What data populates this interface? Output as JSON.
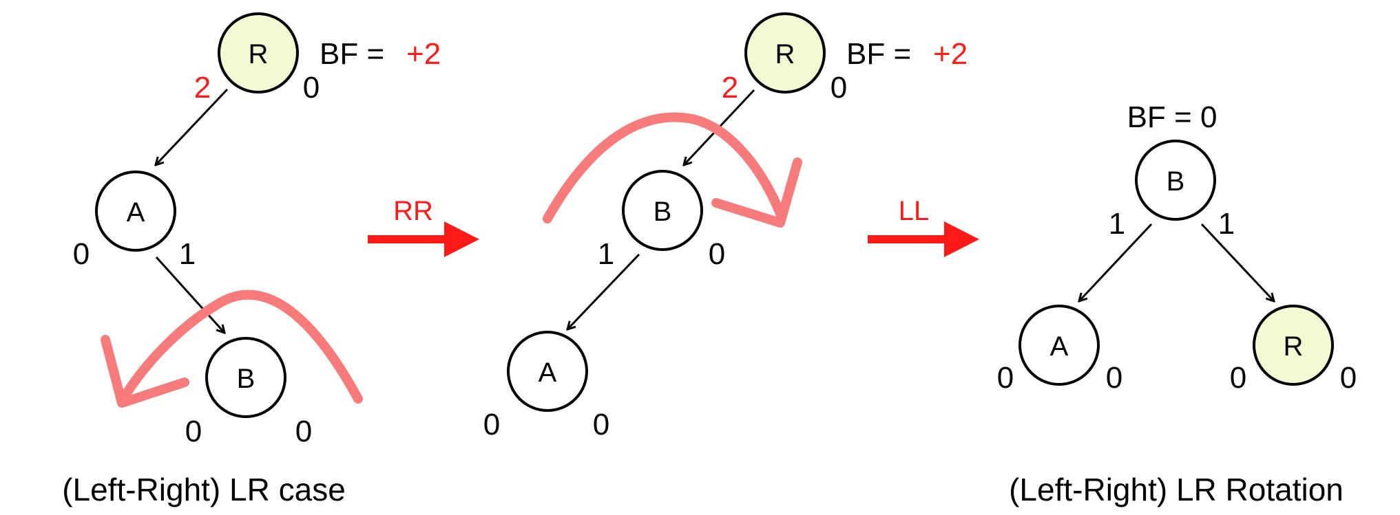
{
  "colors": {
    "highlight_fill": "#f5f9d3",
    "node_fill": "#ffffff",
    "accent_red": "#ff1a1a",
    "rotation_curve": "#f77b7b"
  },
  "panel1": {
    "nodes": {
      "r": "R",
      "a": "A",
      "b": "B"
    },
    "bf_label": "BF =",
    "bf_value": "+2",
    "heights": {
      "r_left": "2",
      "r_right": "0",
      "a_left": "0",
      "a_right": "1",
      "b_left": "0",
      "b_right": "0"
    },
    "caption": "(Left-Right) LR case"
  },
  "op1": {
    "label": "RR"
  },
  "panel2": {
    "nodes": {
      "r": "R",
      "b": "B",
      "a": "A"
    },
    "bf_label": "BF =",
    "bf_value": "+2",
    "heights": {
      "r_left": "2",
      "r_right": "0",
      "b_left": "1",
      "b_right": "0",
      "a_left": "0",
      "a_right": "0"
    }
  },
  "op2": {
    "label": "LL"
  },
  "panel3": {
    "nodes": {
      "b": "B",
      "a": "A",
      "r": "R"
    },
    "bf_text": "BF = 0",
    "heights": {
      "b_left": "1",
      "b_right": "1",
      "a_left": "0",
      "a_right": "0",
      "r_left": "0",
      "r_right": "0"
    },
    "caption": "(Left-Right) LR Rotation"
  }
}
